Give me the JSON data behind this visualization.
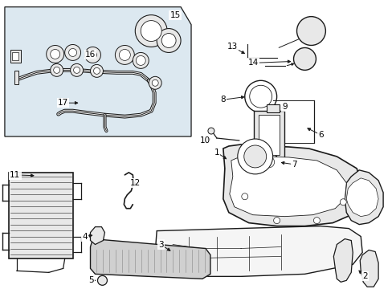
{
  "bg_color": "#ffffff",
  "fig_width": 4.89,
  "fig_height": 3.6,
  "dpi": 100,
  "line_color": "#1a1a1a",
  "fill_light": "#e8e8e8",
  "fill_white": "#ffffff",
  "panel_fill": "#dce8f0",
  "font_size": 7.5,
  "lw_main": 0.9,
  "lw_thin": 0.5
}
